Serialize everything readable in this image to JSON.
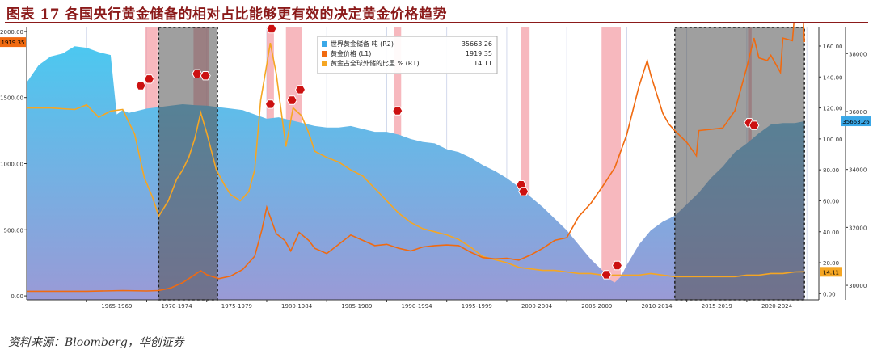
{
  "figure": {
    "title": "图表 17 各国央行黄金储备的相对占比能够更有效的决定黄金价格趋势",
    "source": "资料来源：Bloomberg，华创证券"
  },
  "colors": {
    "reserves_fill_top": "#4cc8f0",
    "reserves_fill_bottom": "#9a9ad6",
    "price_line": "#f06a10",
    "share_line": "#f5a623",
    "recession_band": "#f4a0a8",
    "shaded_period": "#505050",
    "marker": "#cc1111",
    "title_color": "#8b1a1a"
  },
  "chart_data": {
    "type": "line",
    "x_range": [
      1960,
      2026
    ],
    "x_tick_labels": [
      "1965-1969",
      "1970-1974",
      "1975-1979",
      "1980-1984",
      "1985-1989",
      "1990-1994",
      "1995-1999",
      "2000-2004",
      "2005-2009",
      "2010-2014",
      "2015-2019",
      "2020-2024"
    ],
    "axes": {
      "left": {
        "min": -30,
        "max": 2030,
        "ticks": [
          "0.00",
          "500.00",
          "1000.00",
          "1500.00",
          "2000.00"
        ],
        "tick_values": [
          0,
          500,
          1000,
          1500,
          2000
        ]
      },
      "r1": {
        "min": -4,
        "max": 172,
        "ticks": [
          "0.00",
          "20.00",
          "40.00",
          "60.00",
          "80.00",
          "100.00",
          "120.00",
          "140.00",
          "160.00"
        ],
        "tick_values": [
          0,
          20,
          40,
          60,
          80,
          100,
          120,
          140,
          160
        ]
      },
      "r2": {
        "min": 29500,
        "max": 38900,
        "ticks": [
          "30000",
          "32000",
          "34000",
          "36000",
          "38000"
        ],
        "tick_values": [
          30000,
          32000,
          34000,
          36000,
          38000
        ]
      }
    },
    "legend": [
      {
        "name": "世界黄金储备 吨 (R2)",
        "value": "35663.26",
        "color": "#3aa8e8"
      },
      {
        "name": "黄金价格 (L1)",
        "value": "1919.35",
        "color": "#f06a10"
      },
      {
        "name": "黄金占全球外储的比重 % (R1)",
        "value": "14.11",
        "color": "#f5a623"
      }
    ],
    "last_value_tags": {
      "price": "1919.35",
      "reserves": "35663.26",
      "share": "14.11"
    },
    "recession_bands": [
      [
        1969.9,
        1970.9
      ],
      [
        1973.9,
        1975.2
      ],
      [
        1980.0,
        1980.6
      ],
      [
        1981.6,
        1982.9
      ],
      [
        1990.6,
        1991.2
      ],
      [
        2001.2,
        2001.9
      ],
      [
        2007.9,
        2009.5
      ],
      [
        2020.1,
        2020.4
      ]
    ],
    "shaded_periods": [
      [
        1971.0,
        1975.9
      ],
      [
        2014.0,
        2024.8
      ]
    ],
    "markers": [
      {
        "x": 1969.5,
        "y": 1590
      },
      {
        "x": 1970.2,
        "y": 1640
      },
      {
        "x": 1974.2,
        "y": 1680
      },
      {
        "x": 1974.9,
        "y": 1665
      },
      {
        "x": 1980.3,
        "y": 1450
      },
      {
        "x": 1980.4,
        "y": 2020
      },
      {
        "x": 1982.1,
        "y": 1480
      },
      {
        "x": 1982.8,
        "y": 1560
      },
      {
        "x": 1990.9,
        "y": 1400
      },
      {
        "x": 2001.2,
        "y": 840
      },
      {
        "x": 2001.4,
        "y": 790
      },
      {
        "x": 2008.3,
        "y": 160
      },
      {
        "x": 2009.2,
        "y": 230
      },
      {
        "x": 2020.2,
        "y": 1310
      },
      {
        "x": 2020.6,
        "y": 1290
      }
    ],
    "series": [
      {
        "name": "世界黄金储备 吨 (R2)",
        "axis": "r2",
        "x": [
          1960,
          1961,
          1962,
          1963,
          1964,
          1965,
          1966,
          1967,
          1967.5,
          1968,
          1968.5,
          1969,
          1970,
          1971,
          1972,
          1973,
          1974,
          1975,
          1976,
          1977,
          1978,
          1979,
          1980,
          1981,
          1982,
          1983,
          1984,
          1985,
          1986,
          1987,
          1988,
          1989,
          1990,
          1991,
          1992,
          1993,
          1994,
          1995,
          1996,
          1997,
          1998,
          1999,
          2000,
          2001,
          2002,
          2003,
          2004,
          2005,
          2006,
          2007,
          2008,
          2008.5,
          2009,
          2009.5,
          2010,
          2011,
          2012,
          2013,
          2014,
          2015,
          2016,
          2017,
          2018,
          2019,
          2020,
          2021,
          2022,
          2023,
          2024,
          2024.8
        ],
        "values": [
          37000,
          37600,
          37900,
          38000,
          38250,
          38200,
          38050,
          37950,
          35900,
          36050,
          35950,
          36000,
          36100,
          36150,
          36200,
          36250,
          36220,
          36200,
          36150,
          36100,
          36050,
          35900,
          35750,
          35800,
          35700,
          35600,
          35500,
          35450,
          35450,
          35500,
          35400,
          35300,
          35300,
          35200,
          35050,
          34950,
          34900,
          34700,
          34600,
          34400,
          34150,
          33950,
          33700,
          33400,
          33050,
          32700,
          32300,
          31900,
          31400,
          30900,
          30500,
          30200,
          30100,
          30300,
          30700,
          31400,
          31900,
          32200,
          32400,
          32800,
          33200,
          33700,
          34100,
          34600,
          34900,
          35250,
          35550,
          35600,
          35600,
          35663.26
        ]
      },
      {
        "name": "黄金价格 (L1)",
        "axis": "left",
        "x": [
          1960,
          1965,
          1968,
          1970,
          1971,
          1972,
          1973,
          1974,
          1974.5,
          1975,
          1976,
          1977,
          1978,
          1979,
          1979.6,
          1980,
          1980.2,
          1980.8,
          1981.5,
          1982,
          1982.7,
          1983.5,
          1984,
          1985,
          1986,
          1987,
          1988,
          1989,
          1990,
          1991,
          1992,
          1993,
          1994,
          1995,
          1996,
          1997,
          1998,
          1999,
          2000,
          2001,
          2002,
          2003,
          2004,
          2005,
          2006,
          2007,
          2008,
          2009,
          2010,
          2011,
          2011.7,
          2012,
          2013,
          2013.5,
          2014,
          2015,
          2015.8,
          2016,
          2017,
          2018,
          2019,
          2020,
          2020.6,
          2021,
          2021.7,
          2022,
          2022.8,
          2023,
          2023.8,
          2024,
          2024.5,
          2024.8
        ],
        "values": [
          35,
          35,
          40,
          37,
          40,
          60,
          100,
          160,
          190,
          160,
          130,
          150,
          200,
          300,
          500,
          670,
          620,
          470,
          420,
          340,
          480,
          420,
          360,
          320,
          390,
          460,
          420,
          380,
          390,
          360,
          340,
          370,
          380,
          385,
          380,
          330,
          290,
          280,
          285,
          270,
          310,
          360,
          420,
          440,
          600,
          700,
          830,
          970,
          1220,
          1580,
          1780,
          1670,
          1380,
          1300,
          1250,
          1160,
          1060,
          1250,
          1260,
          1270,
          1400,
          1730,
          1950,
          1800,
          1780,
          1820,
          1690,
          1950,
          1930,
          2150,
          2400,
          1919.35
        ]
      },
      {
        "name": "黄金占全球外储的比重 % (R1)",
        "axis": "r1",
        "x": [
          1960,
          1962,
          1964,
          1965,
          1966,
          1967,
          1968,
          1969,
          1969.8,
          1970.5,
          1971,
          1971.8,
          1972.5,
          1973,
          1973.5,
          1974,
          1974.5,
          1975,
          1975.8,
          1976.5,
          1977,
          1977.8,
          1978.5,
          1979,
          1979.5,
          1980,
          1980.3,
          1980.8,
          1981,
          1981.6,
          1982.2,
          1982.9,
          1983.5,
          1984,
          1985,
          1986,
          1987,
          1988,
          1989,
          1990,
          1991,
          1992,
          1993,
          1994,
          1995,
          1996,
          1997,
          1998,
          1999,
          2000,
          2001,
          2002,
          2003,
          2004,
          2005,
          2006,
          2007,
          2008,
          2009,
          2010,
          2011,
          2012,
          2013,
          2014,
          2015,
          2016,
          2017,
          2018,
          2019,
          2020,
          2021,
          2022,
          2023,
          2024,
          2024.8
        ],
        "values": [
          120,
          120,
          119,
          122,
          114,
          118,
          119,
          103,
          75,
          62,
          50,
          60,
          74,
          80,
          88,
          100,
          117,
          104,
          80,
          70,
          64,
          60,
          66,
          80,
          125,
          148,
          162,
          142,
          130,
          95,
          120,
          115,
          104,
          92,
          88,
          85,
          80,
          76,
          68,
          60,
          52,
          46,
          42,
          40,
          38,
          35,
          30,
          24,
          22,
          20,
          17,
          16,
          15,
          15,
          14,
          13,
          13,
          12,
          12,
          12,
          12,
          13,
          12,
          11,
          11,
          11,
          11,
          11,
          11,
          12,
          12,
          13,
          13,
          14,
          14.11
        ]
      }
    ]
  }
}
